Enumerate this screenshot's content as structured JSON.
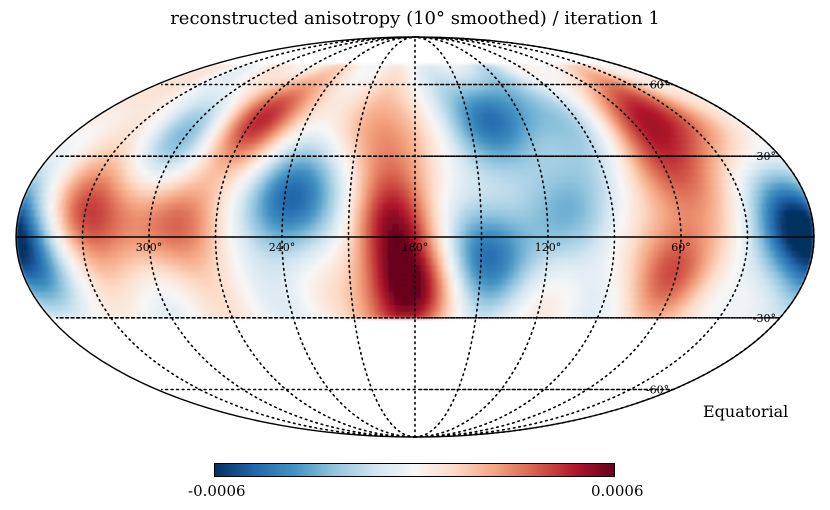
{
  "chart_data": {
    "type": "heatmap",
    "projection": "mollweide",
    "title": "reconstructed anisotropy (10° smoothed) / iteration 1",
    "frame_label": "Equatorial",
    "longitude_labels": [
      "300°",
      "240°",
      "180°",
      "120°",
      "60°"
    ],
    "latitude_labels": [
      "60°",
      "30°",
      "-30°",
      "-60°"
    ],
    "data_lat_range": [
      -30,
      70
    ],
    "colorbar": {
      "min_label": "-0.0006",
      "max_label": "0.0006",
      "range": [
        -0.0006,
        0.0006
      ],
      "colormap": "RdBu_r",
      "colors": [
        "#053061",
        "#2166ac",
        "#4393c3",
        "#92c5de",
        "#d1e5f0",
        "#f7f7f7",
        "#fddbc7",
        "#f4a582",
        "#d6604d",
        "#b2182b",
        "#67001f"
      ]
    },
    "blobs": [
      {
        "lon": 330,
        "lat": 8,
        "value": 0.00055
      },
      {
        "lon": 280,
        "lat": 5,
        "value": 0.0004
      },
      {
        "lon": 240,
        "lat": 12,
        "value": -0.00055
      },
      {
        "lon": 185,
        "lat": -20,
        "value": 0.0006
      },
      {
        "lon": 190,
        "lat": 5,
        "value": 0.00045
      },
      {
        "lon": 200,
        "lat": 35,
        "value": 0.00035
      },
      {
        "lon": 260,
        "lat": 45,
        "value": 0.0004
      },
      {
        "lon": 150,
        "lat": -5,
        "value": -0.0005
      },
      {
        "lon": 130,
        "lat": 45,
        "value": -0.0005
      },
      {
        "lon": 60,
        "lat": -10,
        "value": 0.0004
      },
      {
        "lon": 40,
        "lat": 45,
        "value": 0.00045
      },
      {
        "lon": 60,
        "lat": 20,
        "value": 0.0003
      },
      {
        "lon": 355,
        "lat": -5,
        "value": -0.0004
      },
      {
        "lon": 10,
        "lat": 5,
        "value": -0.0005
      },
      {
        "lon": 300,
        "lat": 35,
        "value": -0.0002
      },
      {
        "lon": 100,
        "lat": 10,
        "value": -0.0003
      },
      {
        "lon": 215,
        "lat": 30,
        "value": -0.0002
      }
    ]
  }
}
